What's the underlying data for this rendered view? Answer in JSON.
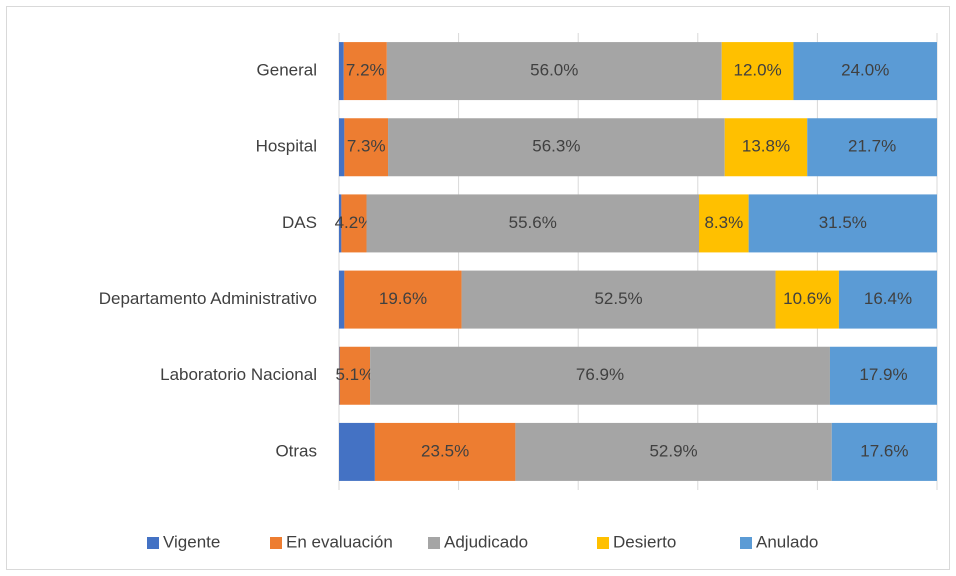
{
  "chart_data": {
    "type": "stacked-bar-horizontal",
    "categories": [
      "General",
      "Hospital",
      "DAS",
      "Departamento Administrativo",
      "Laboratorio Nacional",
      "Otras"
    ],
    "xlim": [
      0,
      100
    ],
    "xticks": [
      0,
      20,
      40,
      60,
      80,
      100
    ],
    "grid": true,
    "legend": "bottom",
    "series": [
      {
        "name": "Vigente",
        "color": "#4472c4",
        "values": [
          0.8,
          0.9,
          0.4,
          0.9,
          0.1,
          6.0
        ]
      },
      {
        "name": "En evaluación",
        "color": "#ed7d31",
        "values": [
          7.2,
          7.3,
          4.2,
          19.6,
          5.1,
          23.5
        ],
        "value_labels": [
          "7.2%",
          "7.3%",
          "4.2%",
          "19.6%",
          "5.1%",
          "23.5%"
        ]
      },
      {
        "name": "Adjudicado",
        "color": "#a5a5a5",
        "values": [
          56.0,
          56.3,
          55.6,
          52.5,
          76.9,
          52.9
        ],
        "value_labels": [
          "56.0%",
          "56.3%",
          "55.6%",
          "52.5%",
          "76.9%",
          "52.9%"
        ]
      },
      {
        "name": "Desierto",
        "color": "#ffc000",
        "values": [
          12.0,
          13.8,
          8.3,
          10.6,
          0,
          0
        ],
        "value_labels": [
          "12.0%",
          "13.8%",
          "8.3%",
          "10.6%",
          null,
          null
        ]
      },
      {
        "name": "Anulado",
        "color": "#5b9bd5",
        "values": [
          24.0,
          21.7,
          31.5,
          16.4,
          17.9,
          17.6
        ],
        "value_labels": [
          "24.0%",
          "21.7%",
          "31.5%",
          "16.4%",
          "17.9%",
          "17.6%"
        ]
      }
    ]
  }
}
